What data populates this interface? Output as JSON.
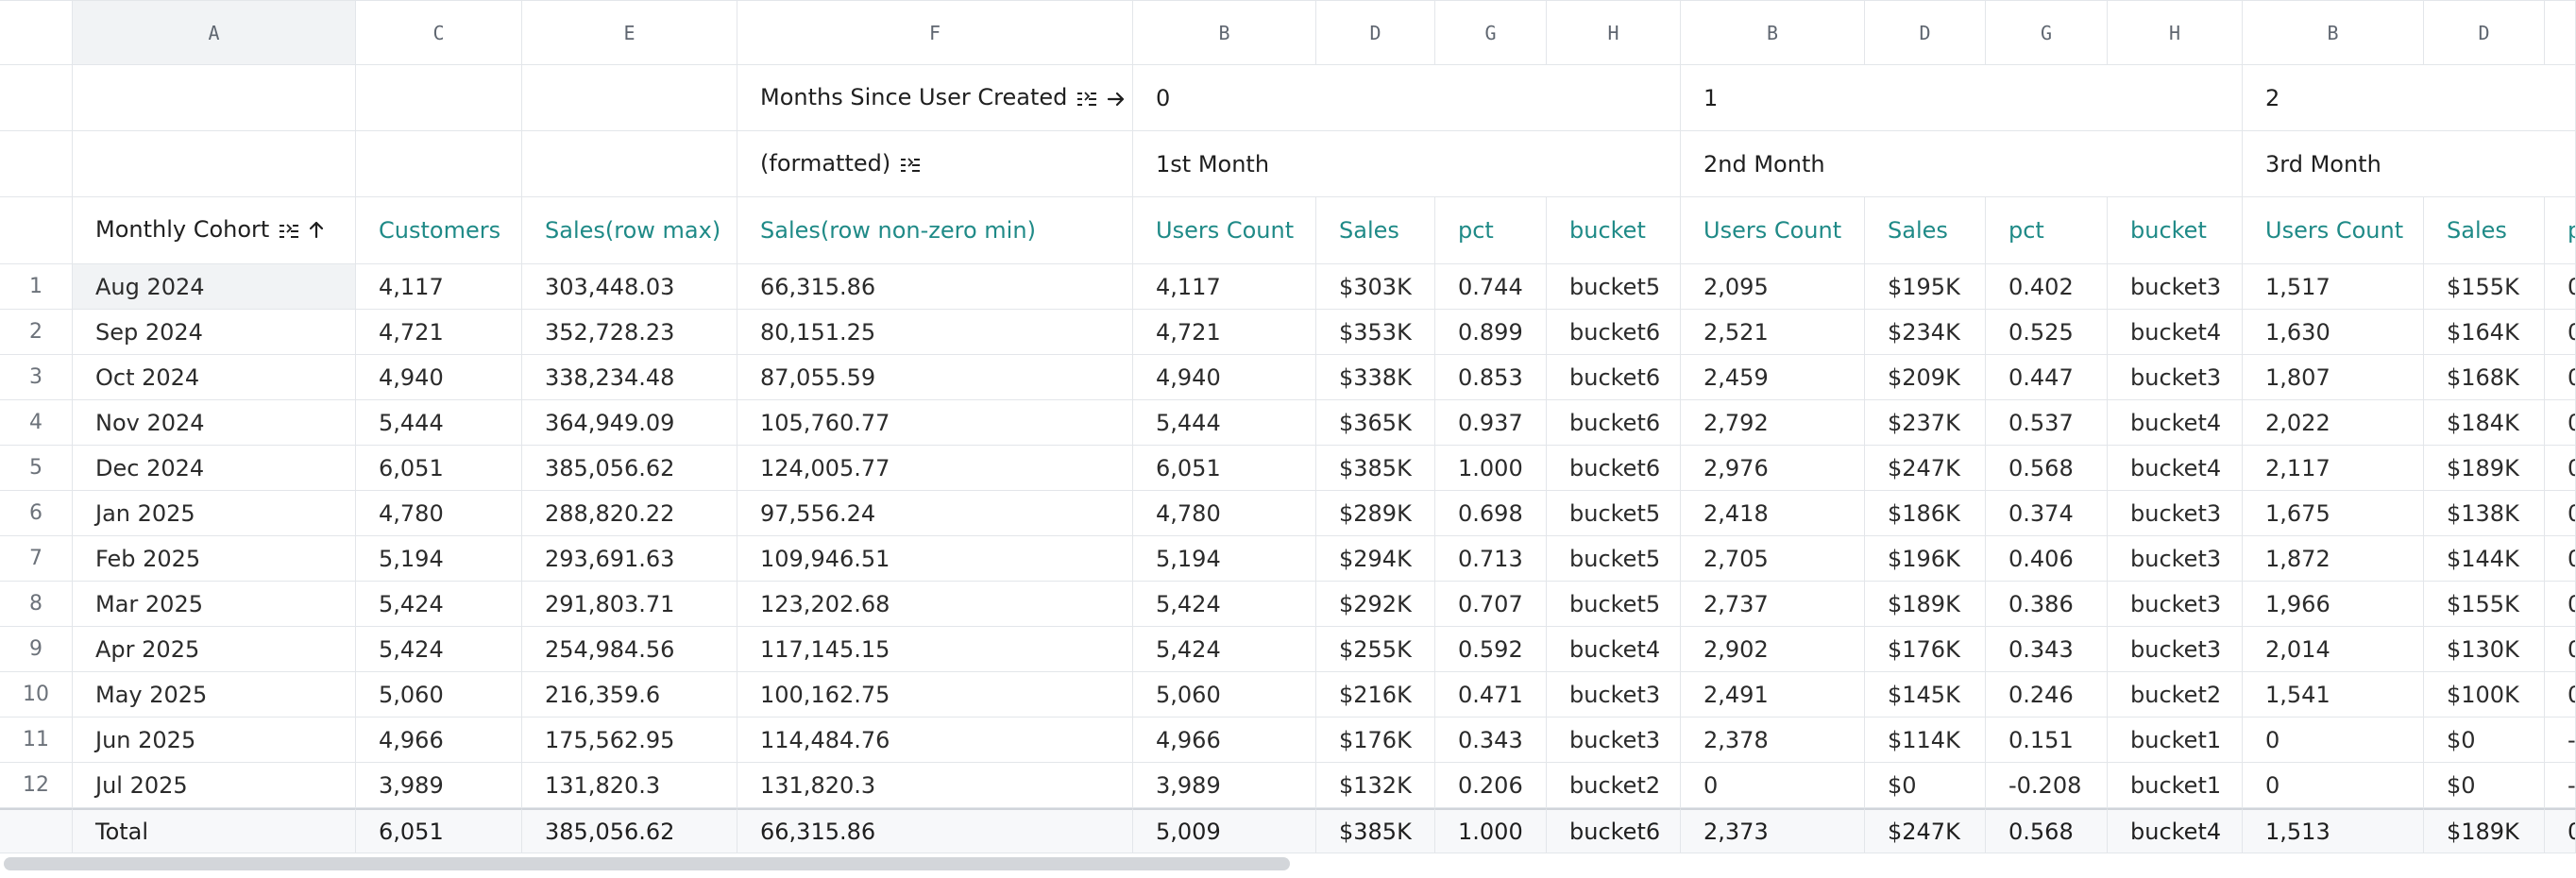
{
  "column_letters": [
    "A",
    "C",
    "E",
    "F",
    "B",
    "D",
    "G",
    "H",
    "B",
    "D",
    "G",
    "H",
    "B",
    "D",
    ""
  ],
  "header_row_1": {
    "title": "Months Since User Created",
    "groups": [
      "0",
      "1",
      "2"
    ]
  },
  "header_row_2": {
    "title": "(formatted)",
    "groups": [
      "1st Month",
      "2nd Month",
      "3rd Month"
    ]
  },
  "column_headers": {
    "cohort": "Monthly Cohort",
    "customers": "Customers",
    "sales_max": "Sales(row max)",
    "sales_min": "Sales(row non-zero min)",
    "group_cols": [
      "Users Count",
      "Sales",
      "pct",
      "bucket"
    ],
    "overflow": "p"
  },
  "icons": {
    "sort_menu": "sort-lines-icon",
    "arrow_right": "arrow-right-icon",
    "arrow_up": "arrow-up-icon"
  },
  "rows": [
    {
      "n": "1",
      "cohort": "Aug 2024",
      "customers": "4,117",
      "smax": "303,448.03",
      "smin": "66,315.86",
      "m0": [
        "4,117",
        "$303K",
        "0.744",
        "bucket5"
      ],
      "m1": [
        "2,095",
        "$195K",
        "0.402",
        "bucket3"
      ],
      "m2": [
        "1,517",
        "$155K",
        "0"
      ]
    },
    {
      "n": "2",
      "cohort": "Sep 2024",
      "customers": "4,721",
      "smax": "352,728.23",
      "smin": "80,151.25",
      "m0": [
        "4,721",
        "$353K",
        "0.899",
        "bucket6"
      ],
      "m1": [
        "2,521",
        "$234K",
        "0.525",
        "bucket4"
      ],
      "m2": [
        "1,630",
        "$164K",
        "0"
      ]
    },
    {
      "n": "3",
      "cohort": "Oct 2024",
      "customers": "4,940",
      "smax": "338,234.48",
      "smin": "87,055.59",
      "m0": [
        "4,940",
        "$338K",
        "0.853",
        "bucket6"
      ],
      "m1": [
        "2,459",
        "$209K",
        "0.447",
        "bucket3"
      ],
      "m2": [
        "1,807",
        "$168K",
        "0"
      ]
    },
    {
      "n": "4",
      "cohort": "Nov 2024",
      "customers": "5,444",
      "smax": "364,949.09",
      "smin": "105,760.77",
      "m0": [
        "5,444",
        "$365K",
        "0.937",
        "bucket6"
      ],
      "m1": [
        "2,792",
        "$237K",
        "0.537",
        "bucket4"
      ],
      "m2": [
        "2,022",
        "$184K",
        "0"
      ]
    },
    {
      "n": "5",
      "cohort": "Dec 2024",
      "customers": "6,051",
      "smax": "385,056.62",
      "smin": "124,005.77",
      "m0": [
        "6,051",
        "$385K",
        "1.000",
        "bucket6"
      ],
      "m1": [
        "2,976",
        "$247K",
        "0.568",
        "bucket4"
      ],
      "m2": [
        "2,117",
        "$189K",
        "0"
      ]
    },
    {
      "n": "6",
      "cohort": "Jan 2025",
      "customers": "4,780",
      "smax": "288,820.22",
      "smin": "97,556.24",
      "m0": [
        "4,780",
        "$289K",
        "0.698",
        "bucket5"
      ],
      "m1": [
        "2,418",
        "$186K",
        "0.374",
        "bucket3"
      ],
      "m2": [
        "1,675",
        "$138K",
        "0"
      ]
    },
    {
      "n": "7",
      "cohort": "Feb 2025",
      "customers": "5,194",
      "smax": "293,691.63",
      "smin": "109,946.51",
      "m0": [
        "5,194",
        "$294K",
        "0.713",
        "bucket5"
      ],
      "m1": [
        "2,705",
        "$196K",
        "0.406",
        "bucket3"
      ],
      "m2": [
        "1,872",
        "$144K",
        "0"
      ]
    },
    {
      "n": "8",
      "cohort": "Mar 2025",
      "customers": "5,424",
      "smax": "291,803.71",
      "smin": "123,202.68",
      "m0": [
        "5,424",
        "$292K",
        "0.707",
        "bucket5"
      ],
      "m1": [
        "2,737",
        "$189K",
        "0.386",
        "bucket3"
      ],
      "m2": [
        "1,966",
        "$155K",
        "0"
      ]
    },
    {
      "n": "9",
      "cohort": "Apr 2025",
      "customers": "5,424",
      "smax": "254,984.56",
      "smin": "117,145.15",
      "m0": [
        "5,424",
        "$255K",
        "0.592",
        "bucket4"
      ],
      "m1": [
        "2,902",
        "$176K",
        "0.343",
        "bucket3"
      ],
      "m2": [
        "2,014",
        "$130K",
        "0"
      ]
    },
    {
      "n": "10",
      "cohort": "May 2025",
      "customers": "5,060",
      "smax": "216,359.6",
      "smin": "100,162.75",
      "m0": [
        "5,060",
        "$216K",
        "0.471",
        "bucket3"
      ],
      "m1": [
        "2,491",
        "$145K",
        "0.246",
        "bucket2"
      ],
      "m2": [
        "1,541",
        "$100K",
        "0"
      ]
    },
    {
      "n": "11",
      "cohort": "Jun 2025",
      "customers": "4,966",
      "smax": "175,562.95",
      "smin": "114,484.76",
      "m0": [
        "4,966",
        "$176K",
        "0.343",
        "bucket3"
      ],
      "m1": [
        "2,378",
        "$114K",
        "0.151",
        "bucket1"
      ],
      "m2": [
        "0",
        "$0",
        "-"
      ]
    },
    {
      "n": "12",
      "cohort": "Jul 2025",
      "customers": "3,989",
      "smax": "131,820.3",
      "smin": "131,820.3",
      "m0": [
        "3,989",
        "$132K",
        "0.206",
        "bucket2"
      ],
      "m1": [
        "0",
        "$0",
        "-0.208",
        "bucket1"
      ],
      "m2": [
        "0",
        "$0",
        "-"
      ]
    }
  ],
  "total": {
    "label": "Total",
    "customers": "6,051",
    "smax": "385,056.62",
    "smin": "66,315.86",
    "m0": [
      "5,009",
      "$385K",
      "1.000",
      "bucket6"
    ],
    "m1": [
      "2,373",
      "$247K",
      "0.568",
      "bucket4"
    ],
    "m2": [
      "1,513",
      "$189K",
      "0"
    ]
  }
}
